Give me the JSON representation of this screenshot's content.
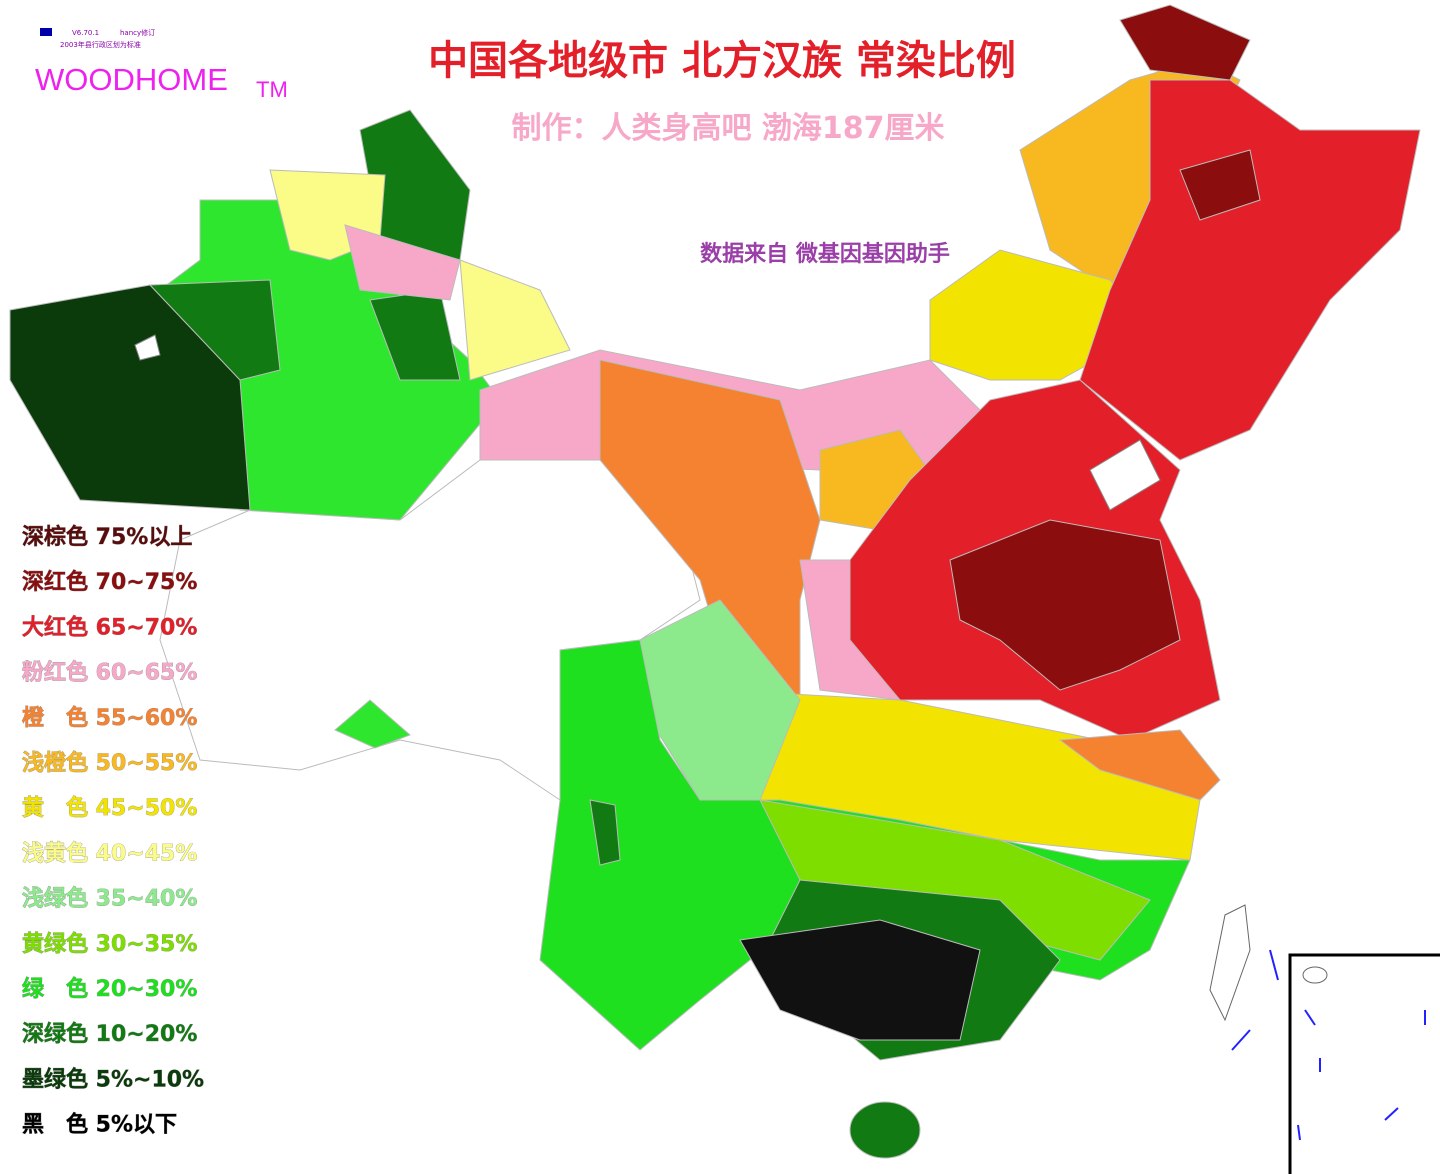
{
  "header": {
    "title": "中国各地级市 北方汉族 常染比例",
    "subtitle": "制作：人类身高吧  渤海187厘米",
    "source": "数据来自 微基因基因助手",
    "brand": "WOODHOME",
    "trademark": "TM",
    "version": "V6.70.1",
    "editor": "hancy修订",
    "basis": "2003年县行政区划为标准"
  },
  "legend": [
    {
      "label": "深棕色 75%以上",
      "color": "#5a0c0c"
    },
    {
      "label": "深红色 70~75%",
      "color": "#8b0d0d"
    },
    {
      "label": "大红色 65~70%",
      "color": "#e3202a"
    },
    {
      "label": "粉红色 60~65%",
      "color": "#f7a8c8"
    },
    {
      "label": "橙　色 55~60%",
      "color": "#f58231"
    },
    {
      "label": "浅橙色 50~55%",
      "color": "#f8b820"
    },
    {
      "label": "黄　色 45~50%",
      "color": "#f2e400"
    },
    {
      "label": "浅黄色 40~45%",
      "color": "#fbfb88"
    },
    {
      "label": "浅绿色 35~40%",
      "color": "#8cea8c"
    },
    {
      "label": "黄绿色 30~35%",
      "color": "#7ede00"
    },
    {
      "label": "绿　色 20~30%",
      "color": "#1fe01f"
    },
    {
      "label": "深绿色 10~20%",
      "color": "#127a12"
    },
    {
      "label": "墨绿色 5%~10%",
      "color": "#0b3a0b"
    },
    {
      "label": "黑　色 5%以下",
      "color": "#000000"
    }
  ]
}
